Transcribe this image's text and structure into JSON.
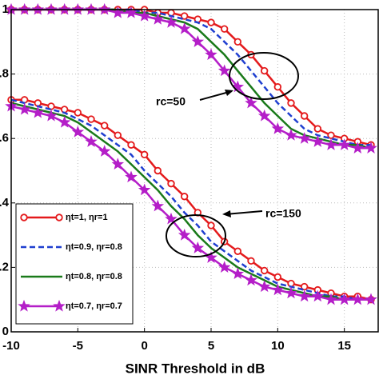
{
  "chart_data": {
    "type": "line",
    "x_label": "SINR Threshold in dB",
    "x": [
      -10,
      -9,
      -8,
      -7,
      -6,
      -5,
      -4,
      -3,
      -2,
      -1,
      0,
      1,
      2,
      3,
      4,
      5,
      6,
      7,
      8,
      9,
      10,
      11,
      12,
      13,
      14,
      15,
      16,
      17
    ],
    "xlim": [
      -10,
      17.6
    ],
    "xticks": [
      -10,
      -5,
      0,
      5,
      10,
      15
    ],
    "ylim": [
      0,
      1
    ],
    "yticks": [
      {
        "value": 0,
        "label": "0"
      },
      {
        "value": 0.2,
        "label": ".2"
      },
      {
        "value": 0.4,
        "label": ".4"
      },
      {
        "value": 0.6,
        "label": ".6"
      },
      {
        "value": 0.8,
        "label": ".8"
      },
      {
        "value": 1,
        "label": "1"
      }
    ],
    "grid": true,
    "legend": "lower left",
    "annotations": [
      "rc=50",
      "rc=150"
    ],
    "series": [
      {
        "name": "ηt=1, ηr=1",
        "color": "#e41a1c",
        "marker": "circle",
        "dash": "solid",
        "values": [
          [
            1.0,
            1.0,
            1.0,
            1.0,
            1.0,
            1.0,
            1.0,
            1.0,
            1.0,
            1.0,
            1.0,
            0.99,
            0.99,
            0.98,
            0.97,
            0.96,
            0.94,
            0.9,
            0.86,
            0.81,
            0.76,
            0.71,
            0.67,
            0.63,
            0.61,
            0.6,
            0.59,
            0.58
          ],
          [
            0.72,
            0.72,
            0.71,
            0.7,
            0.69,
            0.68,
            0.66,
            0.64,
            0.61,
            0.58,
            0.55,
            0.5,
            0.46,
            0.42,
            0.37,
            0.33,
            0.28,
            0.25,
            0.22,
            0.19,
            0.17,
            0.15,
            0.14,
            0.13,
            0.12,
            0.11,
            0.11,
            0.1
          ]
        ]
      },
      {
        "name": "ηt=0.9, ηr=0.8",
        "color": "#1f3fd0",
        "marker": "none",
        "dash": "dashed",
        "values": [
          [
            1.0,
            1.0,
            1.0,
            1.0,
            1.0,
            1.0,
            1.0,
            1.0,
            1.0,
            1.0,
            0.99,
            0.99,
            0.98,
            0.97,
            0.96,
            0.94,
            0.9,
            0.86,
            0.81,
            0.76,
            0.71,
            0.67,
            0.63,
            0.61,
            0.6,
            0.59,
            0.58,
            0.58
          ],
          [
            0.72,
            0.71,
            0.7,
            0.69,
            0.68,
            0.66,
            0.64,
            0.61,
            0.58,
            0.55,
            0.5,
            0.46,
            0.42,
            0.37,
            0.33,
            0.28,
            0.25,
            0.22,
            0.19,
            0.17,
            0.15,
            0.14,
            0.13,
            0.12,
            0.11,
            0.11,
            0.1,
            0.1
          ]
        ]
      },
      {
        "name": "ηt=0.8, ηr=0.8",
        "color": "#1a7a1a",
        "marker": "none",
        "dash": "solid",
        "values": [
          [
            1.0,
            1.0,
            1.0,
            1.0,
            1.0,
            1.0,
            1.0,
            1.0,
            1.0,
            0.99,
            0.99,
            0.98,
            0.97,
            0.96,
            0.94,
            0.9,
            0.86,
            0.81,
            0.76,
            0.71,
            0.67,
            0.63,
            0.61,
            0.6,
            0.59,
            0.58,
            0.58,
            0.57
          ],
          [
            0.71,
            0.7,
            0.69,
            0.68,
            0.67,
            0.65,
            0.62,
            0.59,
            0.56,
            0.52,
            0.48,
            0.44,
            0.39,
            0.35,
            0.3,
            0.26,
            0.23,
            0.2,
            0.18,
            0.16,
            0.14,
            0.13,
            0.12,
            0.11,
            0.11,
            0.1,
            0.1,
            0.1
          ]
        ]
      },
      {
        "name": "ηt=0.7, ηr=0.7",
        "color": "#b41ec8",
        "marker": "star",
        "dash": "solid",
        "values": [
          [
            1.0,
            1.0,
            1.0,
            1.0,
            1.0,
            1.0,
            1.0,
            1.0,
            0.99,
            0.99,
            0.98,
            0.97,
            0.96,
            0.94,
            0.9,
            0.86,
            0.81,
            0.76,
            0.71,
            0.67,
            0.63,
            0.61,
            0.6,
            0.59,
            0.58,
            0.58,
            0.57,
            0.57
          ],
          [
            0.7,
            0.69,
            0.68,
            0.67,
            0.65,
            0.62,
            0.59,
            0.56,
            0.52,
            0.48,
            0.44,
            0.39,
            0.35,
            0.3,
            0.26,
            0.23,
            0.2,
            0.18,
            0.16,
            0.14,
            0.13,
            0.12,
            0.11,
            0.11,
            0.1,
            0.1,
            0.1,
            0.1
          ]
        ]
      }
    ]
  }
}
